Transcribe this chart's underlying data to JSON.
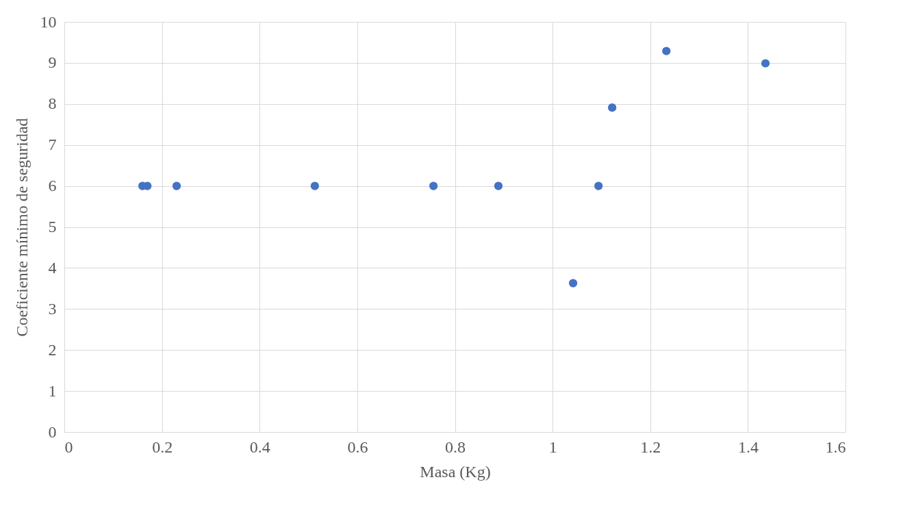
{
  "chart_data": {
    "type": "scatter",
    "xlabel": "Masa (Kg)",
    "ylabel": "Coeficiente mínimo de seguridad",
    "x": [
      0.16,
      0.17,
      0.23,
      0.513,
      0.756,
      0.889,
      1.042,
      1.094,
      1.122,
      1.233,
      1.436
    ],
    "series": [
      {
        "color": "#4472c4",
        "values": [
          6,
          6,
          6,
          6,
          6,
          6,
          3.63,
          6,
          7.91,
          9.29,
          8.99
        ]
      }
    ],
    "xlim": [
      0,
      1.6
    ],
    "xticks": [
      0,
      0.2,
      0.4,
      0.6,
      0.8,
      1,
      1.2,
      1.4,
      1.6
    ],
    "ylim": [
      0,
      10
    ],
    "yticks": [
      0,
      1,
      2,
      3,
      4,
      5,
      6,
      7,
      8,
      9,
      10
    ],
    "grid": true,
    "marker": "circle"
  }
}
